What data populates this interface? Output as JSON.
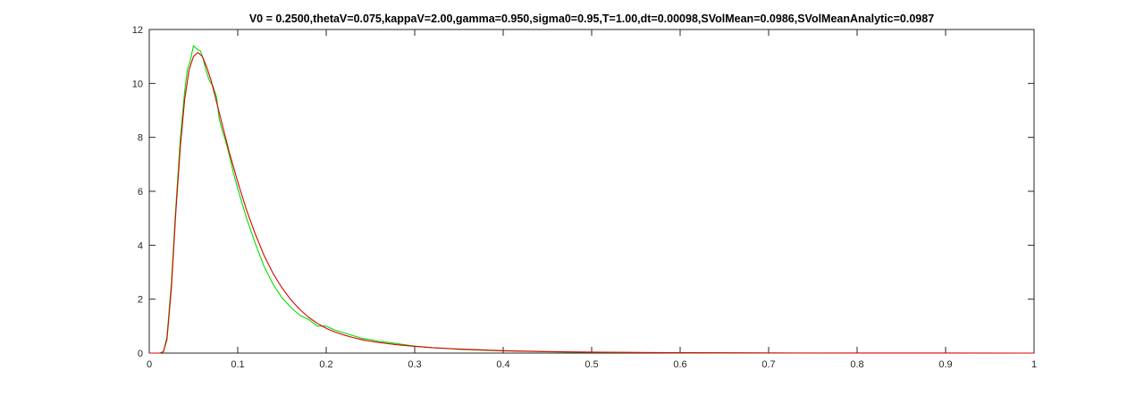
{
  "chart_data": {
    "type": "line",
    "title": "V0 = 0.2500,thetaV=0.075,kappaV=2.00,gamma=0.950,sigma0=0.95,T=1.00,dt=0.00098,SVolMean=0.0986,SVolMeanAnalytic=0.0987",
    "xlabel": "",
    "ylabel": "",
    "xlim": [
      0,
      1
    ],
    "ylim": [
      0,
      12
    ],
    "grid": false,
    "x_ticks": [
      "0",
      "0.1",
      "0.2",
      "0.3",
      "0.4",
      "0.5",
      "0.6",
      "0.7",
      "0.8",
      "0.9",
      "1"
    ],
    "y_ticks": [
      "0",
      "2",
      "4",
      "6",
      "8",
      "10",
      "12"
    ],
    "series": [
      {
        "color": "#00dd00",
        "x": [
          0,
          0.012,
          0.016,
          0.02,
          0.025,
          0.03,
          0.035,
          0.04,
          0.043,
          0.046,
          0.05,
          0.053,
          0.055,
          0.058,
          0.061,
          0.064,
          0.068,
          0.072,
          0.076,
          0.079,
          0.082,
          0.086,
          0.09,
          0.095,
          0.1,
          0.11,
          0.12,
          0.13,
          0.14,
          0.15,
          0.16,
          0.17,
          0.18,
          0.19,
          0.2,
          0.21,
          0.22,
          0.23,
          0.24,
          0.25,
          0.26,
          0.27,
          0.28,
          0.3,
          0.32,
          0.35,
          0.4,
          0.45,
          0.5,
          0.55,
          0.6,
          0.7,
          0.8,
          0.9,
          1.0
        ],
        "y": [
          0,
          0,
          0.05,
          0.6,
          2.6,
          5.4,
          7.9,
          9.7,
          10.5,
          10.8,
          11.4,
          11.3,
          11.25,
          11.2,
          10.9,
          10.5,
          10.1,
          9.9,
          9.5,
          8.7,
          8.3,
          7.9,
          7.4,
          6.7,
          6.1,
          5.0,
          4.05,
          3.2,
          2.55,
          2.05,
          1.7,
          1.4,
          1.25,
          1.0,
          1.0,
          0.85,
          0.75,
          0.65,
          0.55,
          0.5,
          0.43,
          0.4,
          0.35,
          0.26,
          0.2,
          0.14,
          0.08,
          0.05,
          0.03,
          0.02,
          0.01,
          0.0,
          0.0,
          0.0,
          0.0
        ]
      },
      {
        "color": "#dd0000",
        "x": [
          0,
          0.012,
          0.016,
          0.02,
          0.025,
          0.03,
          0.035,
          0.04,
          0.045,
          0.05,
          0.055,
          0.06,
          0.065,
          0.07,
          0.075,
          0.08,
          0.09,
          0.1,
          0.11,
          0.12,
          0.13,
          0.14,
          0.15,
          0.16,
          0.17,
          0.18,
          0.19,
          0.2,
          0.21,
          0.22,
          0.23,
          0.24,
          0.25,
          0.26,
          0.27,
          0.28,
          0.3,
          0.32,
          0.35,
          0.4,
          0.45,
          0.5,
          0.55,
          0.6,
          0.7,
          0.8,
          0.9,
          1.0
        ],
        "y": [
          0,
          0,
          0.05,
          0.5,
          2.4,
          5.2,
          7.6,
          9.4,
          10.5,
          11.0,
          11.15,
          11.0,
          10.6,
          10.1,
          9.45,
          8.8,
          7.5,
          6.35,
          5.3,
          4.4,
          3.6,
          2.95,
          2.42,
          1.98,
          1.62,
          1.33,
          1.1,
          0.92,
          0.78,
          0.67,
          0.58,
          0.5,
          0.44,
          0.39,
          0.35,
          0.31,
          0.25,
          0.2,
          0.15,
          0.09,
          0.055,
          0.035,
          0.022,
          0.014,
          0.005,
          0.002,
          0.001,
          0.0
        ]
      }
    ]
  }
}
